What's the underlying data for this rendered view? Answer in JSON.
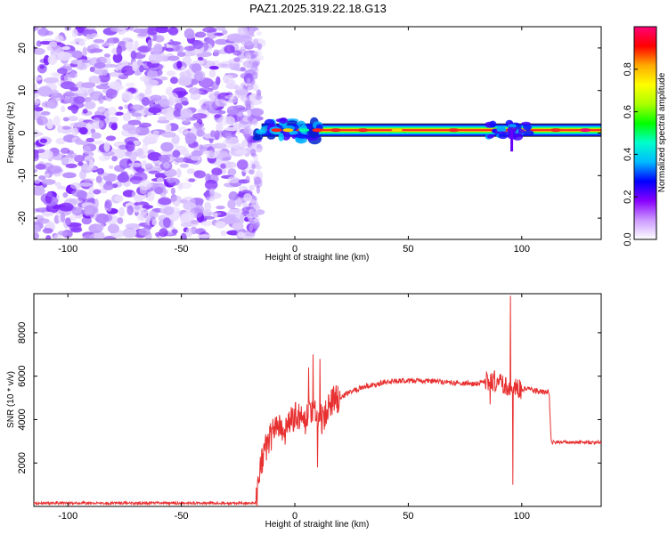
{
  "figure": {
    "title": "PAZ1.2025.319.22.18.G13"
  },
  "chart_data": [
    {
      "type": "heatmap",
      "xlabel": "Height of straight line (km)",
      "ylabel": "Frequency (Hz)",
      "xlim": [
        -115,
        135
      ],
      "ylim": [
        -25,
        25
      ],
      "xticks": [
        -100,
        -50,
        0,
        50,
        100
      ],
      "yticks": [
        -20,
        -10,
        0,
        10,
        20
      ],
      "noise_region": [
        -115,
        -17
      ],
      "signal_start": -17,
      "signal_frequency_hz": 0.7,
      "colorbar": {
        "label": "Normalized spectral amplitude",
        "range": [
          0,
          1
        ],
        "ticks": [
          0.0,
          0.2,
          0.4,
          0.6,
          0.8
        ],
        "colors": [
          "#ffffff",
          "#cc99ff",
          "#8800ff",
          "#0000ff",
          "#00bbff",
          "#00ffcc",
          "#00ff00",
          "#aaff00",
          "#ffff00",
          "#ffaa00",
          "#ff0000",
          "#ff0077"
        ]
      }
    },
    {
      "type": "line",
      "xlabel": "Height of straight line (km)",
      "ylabel": "SNR (10 * v/v)",
      "xlim": [
        -115,
        135
      ],
      "ylim": [
        0,
        9800
      ],
      "xticks": [
        -100,
        -50,
        0,
        50,
        100
      ],
      "yticks": [
        2000,
        4000,
        6000,
        8000
      ],
      "color": "#e83030",
      "x": [
        -115,
        -17,
        -15,
        -12,
        -8,
        -4,
        0,
        4,
        8,
        12,
        16,
        20,
        25,
        30,
        35,
        40,
        50,
        60,
        70,
        80,
        85,
        90,
        93,
        95,
        97,
        100,
        105,
        110,
        112,
        113,
        120,
        130,
        135
      ],
      "y": [
        150,
        150,
        1800,
        3000,
        3600,
        3400,
        4200,
        3900,
        4500,
        4000,
        4900,
        5000,
        5300,
        5500,
        5600,
        5750,
        5800,
        5780,
        5700,
        5650,
        5800,
        5700,
        5600,
        5500,
        5500,
        5420,
        5350,
        5250,
        5300,
        2950,
        2950,
        2950,
        2950
      ],
      "spikes": [
        {
          "x": 6,
          "y": 6400
        },
        {
          "x": 8,
          "y": 7000
        },
        {
          "x": 10,
          "y": 1800
        },
        {
          "x": 11,
          "y": 6800
        },
        {
          "x": 86,
          "y": 4700
        },
        {
          "x": 95,
          "y": 9700
        },
        {
          "x": 96,
          "y": 1000
        }
      ]
    }
  ]
}
